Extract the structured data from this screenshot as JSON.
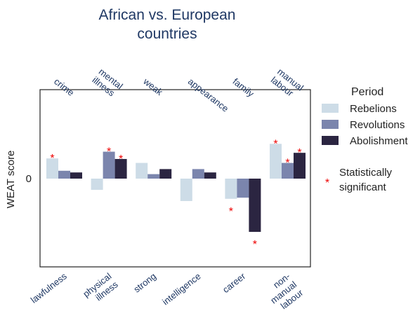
{
  "chart_data": {
    "type": "bar",
    "title": "African vs. European countries",
    "ylabel": "WEAT score",
    "ytick": "0",
    "top_categories": [
      [
        "crime"
      ],
      [
        "mental",
        "illness"
      ],
      [
        "weak"
      ],
      [
        "appearance"
      ],
      [
        "family"
      ],
      [
        "manual",
        "labour"
      ]
    ],
    "bottom_categories": [
      [
        "lawfulness"
      ],
      [
        "physical",
        "illness"
      ],
      [
        "strong"
      ],
      [
        "intelligence"
      ],
      [
        "career"
      ],
      [
        "non-",
        "manual",
        "labour"
      ]
    ],
    "legend_title": "Period",
    "series": [
      {
        "name": "Rebelions",
        "color": "#cddce7",
        "values": [
          0.36,
          -0.2,
          0.28,
          -0.4,
          -0.36,
          0.62
        ],
        "significant": [
          true,
          false,
          false,
          false,
          true,
          true
        ]
      },
      {
        "name": "Revolutions",
        "color": "#7b85ad",
        "values": [
          0.14,
          0.48,
          0.08,
          0.17,
          -0.34,
          0.28
        ],
        "significant": [
          false,
          true,
          false,
          false,
          false,
          true
        ]
      },
      {
        "name": "Abolishment",
        "color": "#2b2541",
        "values": [
          0.11,
          0.35,
          0.17,
          0.11,
          -0.95,
          0.46
        ],
        "significant": [
          false,
          true,
          false,
          false,
          true,
          true
        ]
      }
    ],
    "ylim": [
      -1.58,
      1.58
    ],
    "significance_marker": "*",
    "significance_label": "Statistically significant",
    "significance_label_lines": [
      "Statistically",
      "significant"
    ],
    "legend_position": "right",
    "grid": false
  }
}
